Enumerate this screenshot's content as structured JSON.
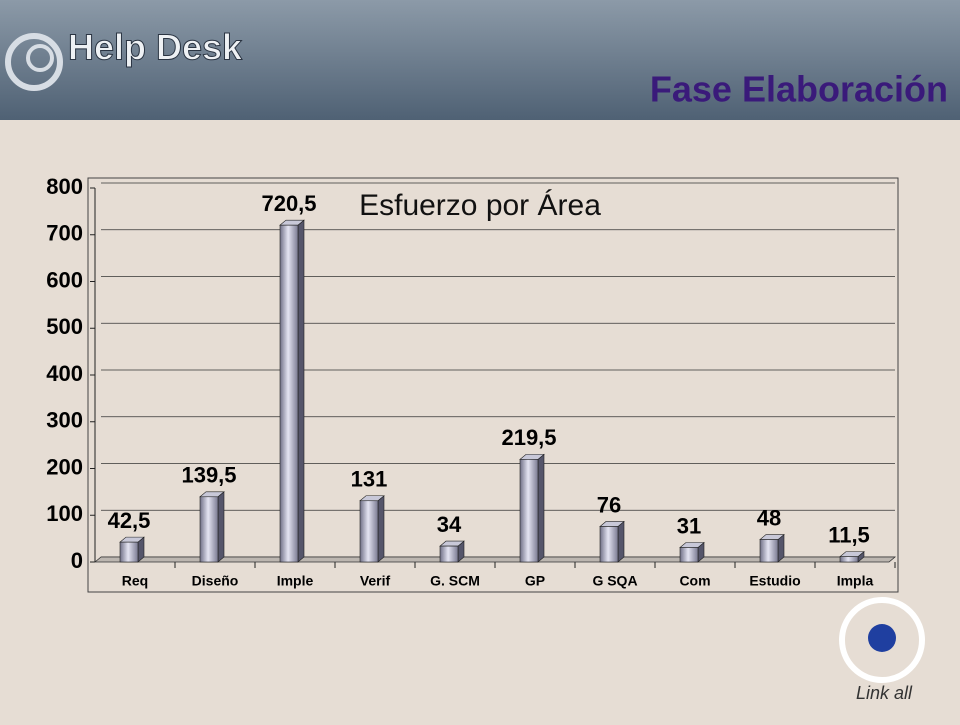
{
  "header": {
    "brand": "Help Desk",
    "title": "Fase Elaboración"
  },
  "logo_text": "Link all",
  "chart_data": {
    "type": "bar",
    "title": "Esfuerzo por Área",
    "categories": [
      "Req",
      "Diseño",
      "Imple",
      "Verif",
      "G. SCM",
      "GP",
      "G SQA",
      "Com",
      "Estudio",
      "Impla"
    ],
    "values": [
      42.5,
      139.5,
      720.5,
      131,
      34,
      219.5,
      76,
      31,
      48,
      11.5
    ],
    "value_labels": [
      "42,5",
      "139,5",
      "720,5",
      "131",
      "34",
      "219,5",
      "76",
      "31",
      "48",
      "11,5"
    ],
    "ylim": [
      0,
      800
    ],
    "yticks": [
      0,
      100,
      200,
      300,
      400,
      500,
      600,
      700,
      800
    ],
    "grid": true
  }
}
